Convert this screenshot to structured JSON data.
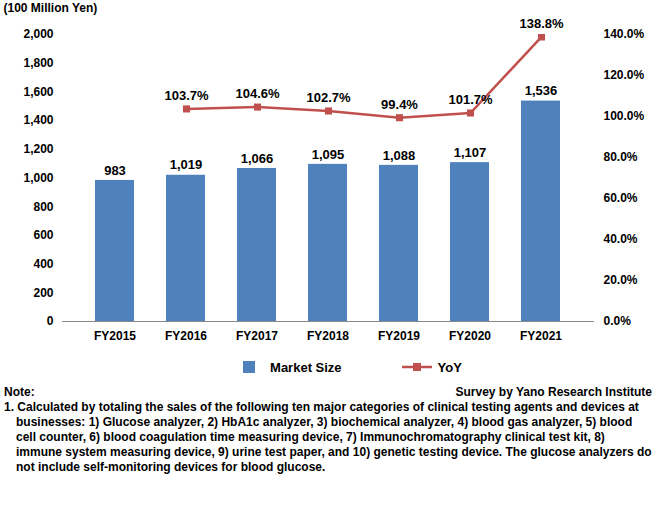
{
  "chart_data": {
    "type": "bar",
    "ylabel": "(100 Million Yen)",
    "categories": [
      "FY2015",
      "FY2016",
      "FY2017",
      "FY2018",
      "FY2019",
      "FY2020",
      "FY2021"
    ],
    "series": [
      {
        "name": "Market Size",
        "type": "bar",
        "color": "#4f81bd",
        "values": [
          983,
          1019,
          1066,
          1095,
          1088,
          1107,
          1536
        ],
        "value_labels": [
          "983",
          "1,019",
          "1,066",
          "1,095",
          "1,088",
          "1,107",
          "1,536"
        ]
      },
      {
        "name": "YoY",
        "type": "line",
        "axis": "y2",
        "color": "#c0504d",
        "marker": "square",
        "values": [
          null,
          103.7,
          104.6,
          102.7,
          99.4,
          101.7,
          138.8
        ],
        "value_labels": [
          null,
          "103.7%",
          "104.6%",
          "102.7%",
          "99.4%",
          "101.7%",
          "138.8%"
        ]
      }
    ],
    "ylim": [
      0,
      2000
    ],
    "yticks": [
      0,
      200,
      400,
      600,
      800,
      {
        "value": 1000,
        "label": "1,000"
      },
      {
        "value": 1200,
        "label": "1,200"
      },
      {
        "value": 1400,
        "label": "1,400"
      },
      {
        "value": 1600,
        "label": "1,600"
      },
      {
        "value": 1800,
        "label": "1,800"
      },
      {
        "value": 2000,
        "label": "2,000"
      }
    ],
    "y2lim": [
      0,
      140
    ],
    "y2ticks": [
      {
        "value": 0,
        "label": "0.0%"
      },
      {
        "value": 20,
        "label": "20.0%"
      },
      {
        "value": 40,
        "label": "40.0%"
      },
      {
        "value": 60,
        "label": "60.0%"
      },
      {
        "value": 80,
        "label": "80.0%"
      },
      {
        "value": 100,
        "label": "100.0%"
      },
      {
        "value": 120,
        "label": "120.0%"
      },
      {
        "value": 140,
        "label": "140.0%"
      }
    ],
    "data_labels": true,
    "grid": false,
    "legend": "bottom",
    "note_heading": "Note:",
    "source": "Survey by Yano Research Institute",
    "notes": [
      "1. Calculated by totaling the sales of the following ten major categories of clinical testing agents and devices at businesses: 1) Glucose analyzer, 2) HbA1c analyzer, 3) biochemical analyzer, 4) blood gas analyzer, 5) blood cell counter, 6) blood coagulation time measuring device, 7) Immunochromatography clinical test kit, 8) immune system measuring device, 9) urine test paper, and 10) genetic testing device. The glucose analyzers do not include self-monitoring devices for blood glucose."
    ]
  }
}
